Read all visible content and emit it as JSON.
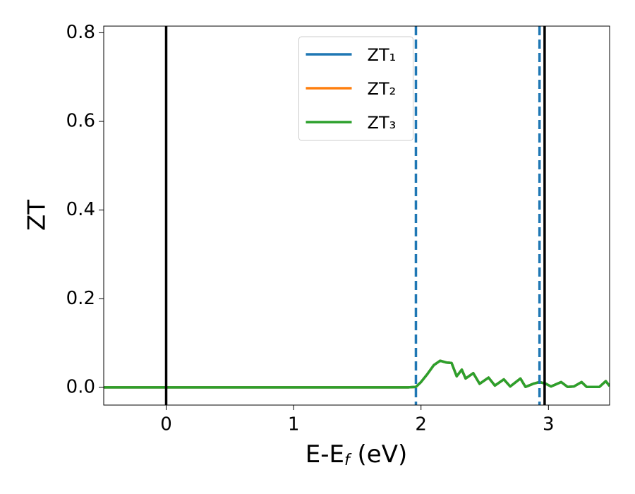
{
  "chart_data": {
    "type": "line",
    "xlabel": {
      "main": "E-E",
      "sub": "f",
      "rest": " (eV)"
    },
    "ylabel": "ZT",
    "x": [
      -0.49,
      0,
      0.5,
      1.0,
      1.5,
      1.9,
      1.96,
      2.0,
      2.05,
      2.1,
      2.15,
      2.2,
      2.24,
      2.28,
      2.32,
      2.35,
      2.41,
      2.46,
      2.53,
      2.58,
      2.65,
      2.7,
      2.78,
      2.82,
      2.88,
      2.93,
      2.98,
      3.02,
      3.1,
      3.15,
      3.2,
      3.26,
      3.3,
      3.4,
      3.45,
      3.48
    ],
    "series": [
      {
        "name": "ZT₁",
        "color": "#1f77b4",
        "values": [
          0,
          0,
          0,
          0,
          0,
          0,
          0.001,
          0.012,
          0.03,
          0.05,
          0.06,
          0.056,
          0.055,
          0.025,
          0.04,
          0.02,
          0.032,
          0.008,
          0.022,
          0.004,
          0.018,
          0.002,
          0.02,
          0.001,
          0.008,
          0.012,
          0.008,
          0.002,
          0.012,
          0.001,
          0.002,
          0.012,
          0.001,
          0.001,
          0.014,
          0.003
        ]
      },
      {
        "name": "ZT₂",
        "color": "#ff7f0e",
        "values": [
          0,
          0,
          0,
          0,
          0,
          0,
          0.001,
          0.012,
          0.03,
          0.05,
          0.06,
          0.056,
          0.055,
          0.025,
          0.04,
          0.02,
          0.032,
          0.008,
          0.022,
          0.004,
          0.018,
          0.002,
          0.02,
          0.001,
          0.008,
          0.012,
          0.008,
          0.002,
          0.012,
          0.001,
          0.002,
          0.012,
          0.001,
          0.001,
          0.014,
          0.003
        ]
      },
      {
        "name": "ZT₃",
        "color": "#2ca02c",
        "values": [
          0,
          0,
          0,
          0,
          0,
          0,
          0.001,
          0.012,
          0.03,
          0.05,
          0.06,
          0.056,
          0.055,
          0.025,
          0.04,
          0.02,
          0.032,
          0.008,
          0.022,
          0.004,
          0.018,
          0.002,
          0.02,
          0.001,
          0.008,
          0.012,
          0.008,
          0.002,
          0.012,
          0.001,
          0.002,
          0.012,
          0.001,
          0.001,
          0.014,
          0.003
        ]
      }
    ],
    "vlines": [
      {
        "x": 0,
        "color": "#000000",
        "style": "solid"
      },
      {
        "x": 2.97,
        "color": "#000000",
        "style": "solid"
      },
      {
        "x": 1.96,
        "color": "#1f77b4",
        "style": "dashed"
      },
      {
        "x": 2.93,
        "color": "#1f77b4",
        "style": "dashed"
      }
    ],
    "xlim": [
      -0.49,
      3.48
    ],
    "xticks": [
      0,
      1,
      2,
      3
    ],
    "ylim": [
      -0.04,
      0.815
    ],
    "yticks": [
      {
        "value": 0,
        "label": "0.0"
      },
      0.2,
      0.4,
      0.6,
      0.8
    ],
    "legend": "upper center",
    "grid": false
  }
}
